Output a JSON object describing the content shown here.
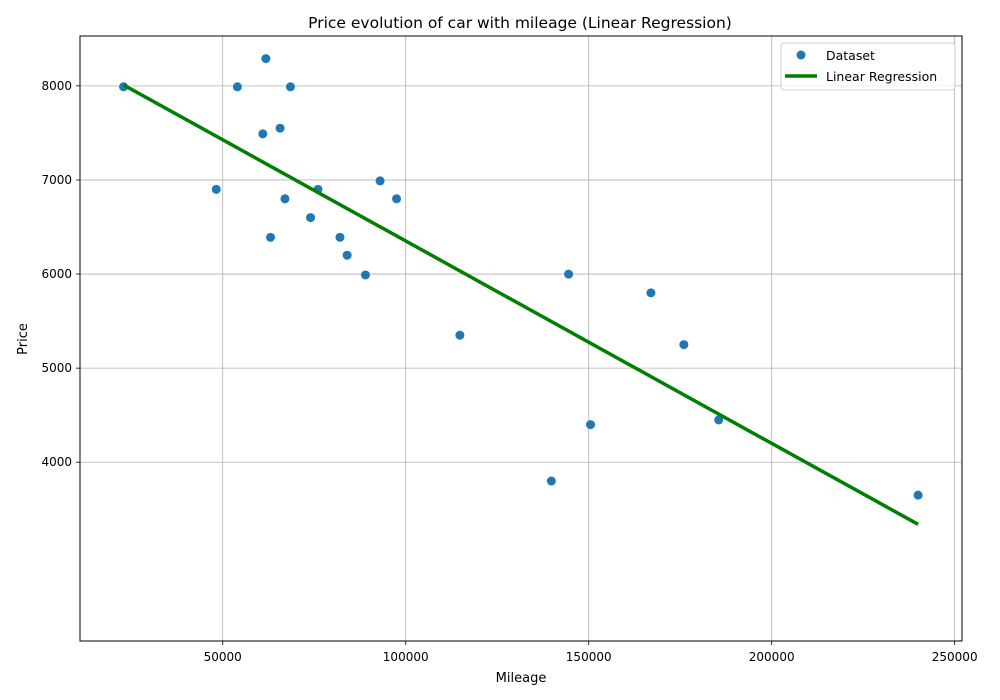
{
  "chart_data": {
    "type": "scatter",
    "title": "Price evolution of car with mileage (Linear Regression)",
    "xlabel": "Mileage",
    "ylabel": "Price",
    "xlim": [
      11000,
      252000
    ],
    "ylim": [
      2100,
      8530
    ],
    "xticks": [
      50000,
      100000,
      150000,
      200000,
      250000
    ],
    "yticks": [
      4000,
      5000,
      6000,
      7000,
      8000
    ],
    "grid": true,
    "legend_placement": "top-right",
    "series": [
      {
        "name": "Dataset",
        "kind": "scatter",
        "color": "#1f77b4",
        "x": [
          22899,
          48235,
          54000,
          60949,
          61789,
          63060,
          65674,
          67000,
          68500,
          74000,
          76025,
          82029,
          84000,
          89000,
          93000,
          97500,
          114800,
          139800,
          144500,
          150500,
          167000,
          176000,
          185530,
          240000
        ],
        "y": [
          7990,
          6900,
          7990,
          7490,
          8290,
          6390,
          7550,
          6800,
          7990,
          6600,
          6900,
          6390,
          6200,
          5990,
          6990,
          6800,
          5350,
          3800,
          5999,
          4400,
          5800,
          5250,
          4450,
          3650
        ]
      },
      {
        "name": "Linear Regression",
        "kind": "line",
        "color": "#008000",
        "x": [
          22899,
          240000
        ],
        "y": [
          8010,
          3340
        ]
      }
    ]
  }
}
